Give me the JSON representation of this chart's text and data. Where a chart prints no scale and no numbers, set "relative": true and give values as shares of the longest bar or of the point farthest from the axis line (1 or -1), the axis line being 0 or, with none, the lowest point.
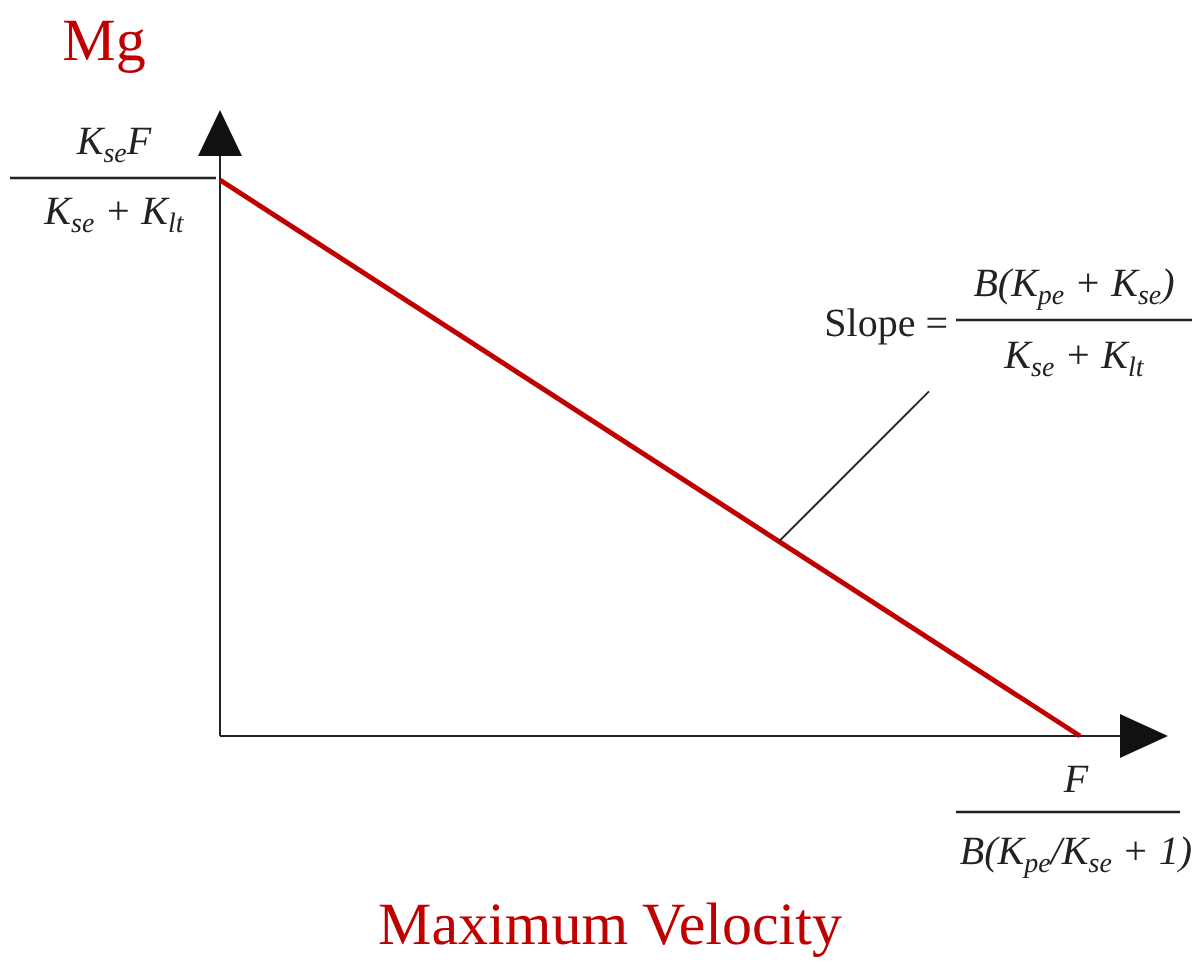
{
  "chart_data": {
    "type": "line",
    "relative": true,
    "ylabel": "Mg",
    "xlabel": "Maximum Velocity",
    "categories": [
      null,
      null
    ],
    "series": [
      {
        "color": "#c00000",
        "values": [
          1,
          0
        ]
      }
    ],
    "annotations": [
      "K$_{se}$F",
      "K$_{se}$ + K$_{lt}$",
      "F",
      "B(K$_{pe}$/K$_{se}$ + 1)",
      "Slope =",
      "B(K$_{pe}$ + K$_{se}$)",
      "K$_{se}$ + K$_{lt}$"
    ]
  }
}
